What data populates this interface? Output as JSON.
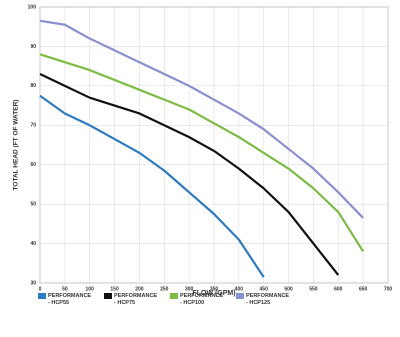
{
  "chart_data": {
    "type": "line",
    "xlabel": "FLOW (GPM)",
    "ylabel": "TOTAL HEAD (FT OF WATER)",
    "xlim": [
      0,
      700
    ],
    "ylim": [
      30,
      100
    ],
    "xticks": [
      0,
      50,
      100,
      150,
      200,
      250,
      300,
      350,
      400,
      450,
      500,
      550,
      600,
      650,
      700
    ],
    "yticks": [
      30,
      40,
      50,
      60,
      70,
      80,
      90,
      100
    ],
    "grid": true,
    "series": [
      {
        "name": "PERFORMANCE - HCP55",
        "color": "#2b7bc4",
        "x": [
          0,
          50,
          100,
          150,
          200,
          250,
          300,
          350,
          400,
          450
        ],
        "values": [
          77.5,
          73,
          70,
          66.5,
          63,
          58.5,
          53,
          47.5,
          41,
          31.5
        ]
      },
      {
        "name": "PERFORMANCE - HCP75",
        "color": "#111111",
        "x": [
          0,
          50,
          100,
          150,
          200,
          250,
          300,
          350,
          400,
          450,
          500,
          550,
          600
        ],
        "values": [
          83,
          80,
          77,
          75,
          73,
          70,
          67,
          63.5,
          59,
          54,
          48,
          40,
          32
        ]
      },
      {
        "name": "PERFORMANCE - HCP100",
        "color": "#7dbb42",
        "x": [
          0,
          50,
          100,
          150,
          200,
          250,
          300,
          350,
          400,
          450,
          500,
          550,
          600,
          650
        ],
        "values": [
          88,
          86,
          84,
          81.5,
          79,
          76.5,
          74,
          70.5,
          67,
          63,
          59,
          54,
          48,
          38
        ]
      },
      {
        "name": "PERFORMANCE - HCP125",
        "color": "#8a8fd0",
        "x": [
          0,
          50,
          100,
          150,
          200,
          250,
          300,
          350,
          400,
          450,
          500,
          550,
          600,
          650
        ],
        "values": [
          96.5,
          95.5,
          92,
          89,
          86,
          83,
          80,
          76.5,
          73,
          69,
          64,
          59,
          53,
          46.5
        ]
      }
    ]
  }
}
